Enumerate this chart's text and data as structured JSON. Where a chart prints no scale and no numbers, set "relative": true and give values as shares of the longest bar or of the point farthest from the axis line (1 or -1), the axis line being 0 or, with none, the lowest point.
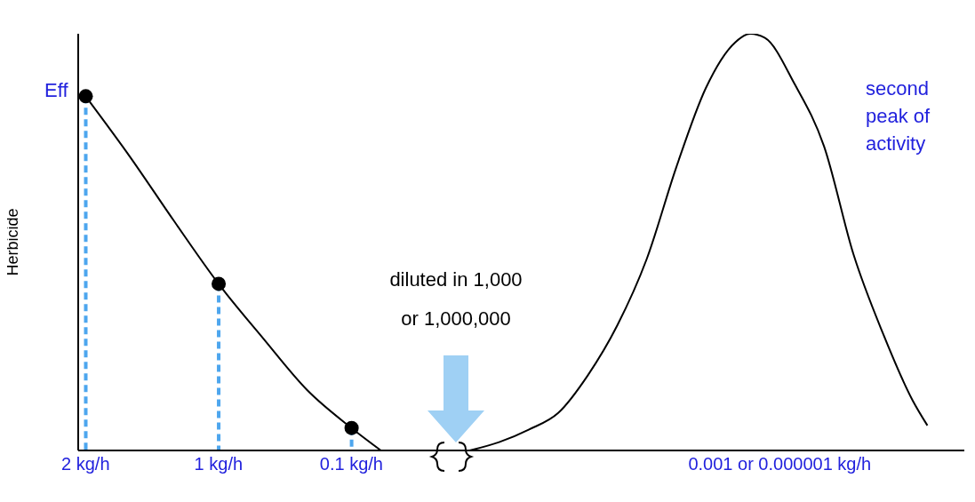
{
  "chart_data": {
    "type": "line",
    "relative": true,
    "ylabel": "Herbicide",
    "legend": false,
    "grid": false,
    "categories": [
      "2 kg/h",
      null,
      null,
      null,
      null,
      null,
      null,
      null,
      null,
      "1 kg/h",
      null,
      null,
      null,
      null,
      null,
      null,
      null,
      null,
      "0.1 kg/h",
      null,
      null,
      null,
      null,
      null,
      null,
      null,
      null,
      null,
      null,
      null,
      null,
      null,
      null,
      null,
      null,
      null,
      null,
      null,
      null,
      null,
      null,
      null,
      null,
      null,
      null,
      null,
      null,
      "0.001 or 0.000001 kg/h",
      null,
      null,
      null,
      null,
      null,
      null,
      null,
      null,
      null,
      null,
      null,
      null
    ],
    "series": [
      {
        "color": "#000000",
        "marker": "none",
        "values": [
          0.85,
          null,
          null,
          0.705,
          null,
          null,
          0.55,
          null,
          null,
          0.4,
          null,
          null,
          0.27,
          null,
          null,
          0.145,
          null,
          null,
          0.054,
          null,
          0,
          null,
          null,
          null,
          null,
          null,
          null,
          null,
          null,
          null,
          null,
          null,
          null,
          null,
          null,
          null,
          null,
          null,
          null,
          null,
          null,
          null,
          null,
          null,
          null,
          null,
          null,
          null,
          null,
          null,
          null,
          null,
          null,
          null,
          null,
          null,
          null,
          null,
          null,
          null
        ]
      },
      {
        "color": "#000000",
        "marker": "none",
        "values": [
          null,
          null,
          null,
          null,
          null,
          null,
          null,
          null,
          null,
          null,
          null,
          null,
          null,
          null,
          null,
          null,
          null,
          null,
          null,
          null,
          null,
          null,
          null,
          null,
          null,
          null,
          0,
          null,
          0.02,
          null,
          0.05,
          null,
          0.09,
          null,
          0.18,
          null,
          0.3,
          null,
          0.46,
          null,
          0.68,
          null,
          0.87,
          null,
          0.98,
          1,
          0.99,
          null,
          0.88,
          null,
          0.73,
          null,
          0.47,
          null,
          0.28,
          null,
          0.12,
          0.06,
          null,
          null
        ]
      },
      {
        "type": "lollipop",
        "color": "#000000",
        "marker": "circle",
        "line_style": "dashed",
        "values": [
          0.85,
          null,
          null,
          null,
          null,
          null,
          null,
          null,
          null,
          0.4,
          null,
          null,
          null,
          null,
          null,
          null,
          null,
          null,
          0.054,
          null,
          null,
          null,
          null,
          null,
          null,
          null,
          null,
          null,
          null,
          null,
          null,
          null,
          null,
          null,
          null,
          null,
          null,
          null,
          null,
          null,
          null,
          null,
          null,
          null,
          null,
          null,
          null,
          null,
          null,
          null,
          null,
          null,
          null,
          null,
          null,
          null,
          null,
          null,
          null,
          null
        ]
      }
    ],
    "annotations": [
      "Eff",
      "diluted in 1,000 or 1,000,000",
      "second peak of activity"
    ]
  }
}
